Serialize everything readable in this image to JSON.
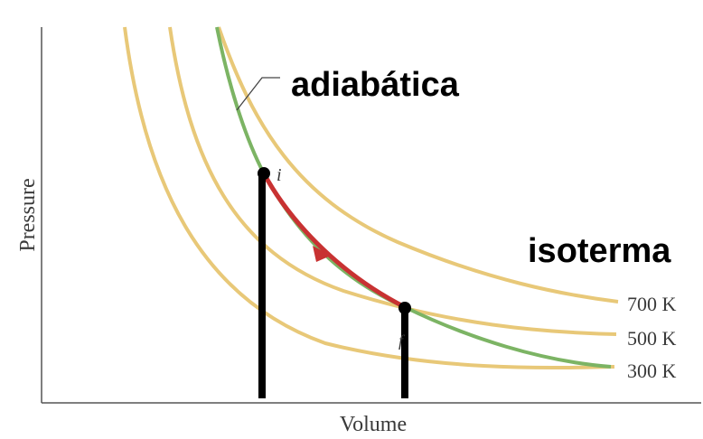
{
  "axes": {
    "xlabel": "Volume",
    "ylabel": "Pressure"
  },
  "isotherms": [
    {
      "label": "700 K"
    },
    {
      "label": "500 K"
    },
    {
      "label": "300 K"
    }
  ],
  "annotations": {
    "adiabatic": "adiabática",
    "isotherm": "isoterma",
    "point_initial": "i",
    "point_final": "f"
  },
  "colors": {
    "isotherm": "#e8c878",
    "adiabatic": "#7cb464",
    "process": "#c83232",
    "axis": "#555555",
    "marker": "#000000"
  }
}
